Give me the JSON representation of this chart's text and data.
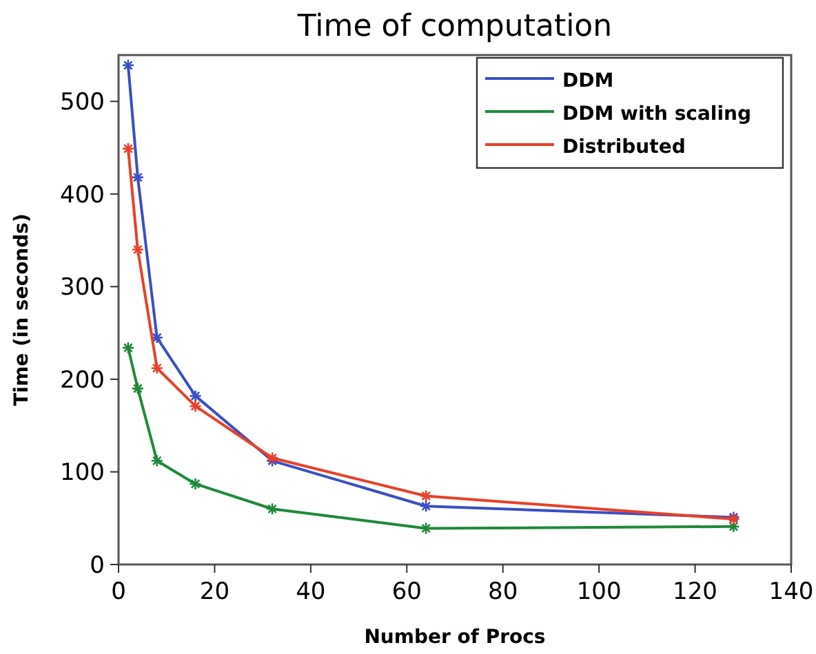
{
  "chart_data": {
    "type": "line",
    "title": "Time of computation",
    "xlabel": "Number of Procs",
    "ylabel": "Time (in seconds)",
    "x": [
      2,
      4,
      8,
      16,
      32,
      64,
      128
    ],
    "series": [
      {
        "name": "DDM",
        "color": "#3a4fc4",
        "values": [
          539,
          418,
          245,
          182,
          112,
          63,
          51
        ]
      },
      {
        "name": "DDM with scaling",
        "color": "#1f8a3a",
        "values": [
          234,
          190,
          112,
          87,
          60,
          39,
          41
        ]
      },
      {
        "name": "Distributed",
        "color": "#e8402a",
        "values": [
          449,
          340,
          212,
          171,
          115,
          74,
          49
        ]
      }
    ],
    "xlim": [
      0,
      140
    ],
    "xticks": [
      0,
      20,
      40,
      60,
      80,
      100,
      120,
      140
    ],
    "ylim": [
      0,
      550
    ],
    "yticks": [
      0,
      100,
      200,
      300,
      400,
      500
    ],
    "legend": "top right",
    "marker": "cross",
    "line_style": "solid"
  }
}
